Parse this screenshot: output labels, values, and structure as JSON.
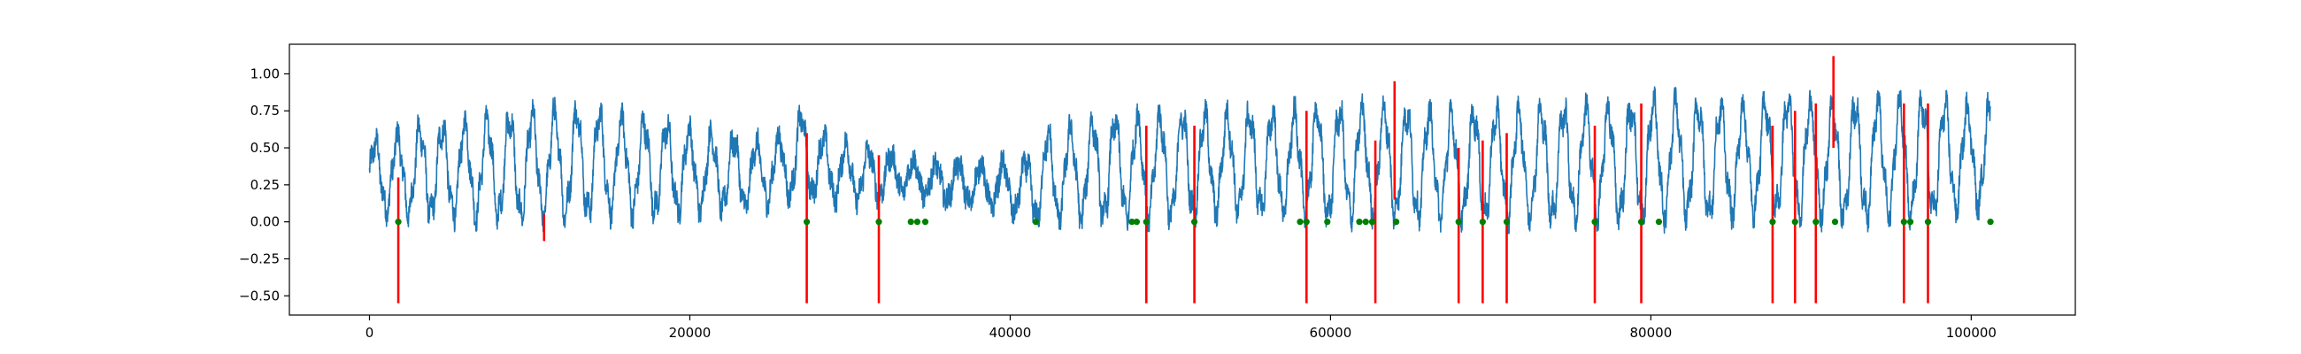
{
  "chart_data": {
    "type": "line",
    "title": "",
    "xlabel": "",
    "ylabel": "",
    "xlim": [
      -5000,
      106500
    ],
    "ylim": [
      -0.63,
      1.2
    ],
    "xticks": [
      0,
      20000,
      40000,
      60000,
      80000,
      100000
    ],
    "xtick_labels": [
      "0",
      "20000",
      "40000",
      "60000",
      "80000",
      "100000"
    ],
    "yticks": [
      -0.5,
      -0.25,
      0.0,
      0.25,
      0.5,
      0.75,
      1.0
    ],
    "ytick_labels": [
      "−0.50",
      "−0.25",
      "0.00",
      "0.25",
      "0.50",
      "0.75",
      "1.00"
    ],
    "grid": false,
    "legend": "none",
    "series": [
      {
        "kind": "line",
        "color": "#1f77b4",
        "x_range": [
          0,
          101200
        ],
        "envelope": [
          [
            0,
            0.05,
            0.55
          ],
          [
            1000,
            0.05,
            0.58
          ],
          [
            3000,
            0.02,
            0.65
          ],
          [
            10000,
            0.0,
            0.75
          ],
          [
            13000,
            0.02,
            0.78
          ],
          [
            20000,
            0.05,
            0.65
          ],
          [
            24000,
            0.08,
            0.55
          ],
          [
            26000,
            0.15,
            0.6
          ],
          [
            27000,
            0.18,
            0.75
          ],
          [
            28000,
            0.15,
            0.6
          ],
          [
            31000,
            0.12,
            0.5
          ],
          [
            33000,
            0.2,
            0.45
          ],
          [
            35000,
            0.15,
            0.4
          ],
          [
            38000,
            0.1,
            0.4
          ],
          [
            41000,
            0.02,
            0.42
          ],
          [
            42000,
            -0.02,
            0.6
          ],
          [
            45000,
            0.0,
            0.7
          ],
          [
            50000,
            0.0,
            0.75
          ],
          [
            55000,
            0.05,
            0.75
          ],
          [
            60000,
            0.0,
            0.78
          ],
          [
            63000,
            0.02,
            0.8
          ],
          [
            67000,
            0.0,
            0.75
          ],
          [
            72000,
            0.0,
            0.78
          ],
          [
            78000,
            0.0,
            0.8
          ],
          [
            80000,
            0.0,
            0.85
          ],
          [
            85000,
            0.02,
            0.8
          ],
          [
            88000,
            0.05,
            0.85
          ],
          [
            91000,
            0.0,
            0.82
          ],
          [
            96000,
            0.0,
            0.85
          ],
          [
            99000,
            0.05,
            0.8
          ],
          [
            101200,
            0.1,
            0.82
          ]
        ],
        "period": 1400
      },
      {
        "kind": "vlines",
        "color": "#ff0000",
        "lines": [
          [
            1800,
            -0.55,
            0.3
          ],
          [
            10900,
            -0.13,
            0.05
          ],
          [
            27300,
            -0.55,
            0.6
          ],
          [
            31800,
            -0.55,
            0.45
          ],
          [
            48500,
            -0.55,
            0.65
          ],
          [
            51500,
            -0.55,
            0.65
          ],
          [
            58500,
            -0.55,
            0.75
          ],
          [
            62800,
            -0.55,
            0.55
          ],
          [
            64000,
            0.15,
            0.95
          ],
          [
            68000,
            -0.55,
            0.5
          ],
          [
            69500,
            -0.55,
            0.55
          ],
          [
            71000,
            -0.55,
            0.6
          ],
          [
            76500,
            -0.55,
            0.65
          ],
          [
            79400,
            -0.55,
            0.8
          ],
          [
            87600,
            -0.55,
            0.65
          ],
          [
            89000,
            -0.55,
            0.75
          ],
          [
            90300,
            -0.55,
            0.8
          ],
          [
            91400,
            0.5,
            1.12
          ],
          [
            95800,
            -0.55,
            0.8
          ],
          [
            97300,
            -0.55,
            0.8
          ]
        ]
      },
      {
        "kind": "scatter",
        "color": "#008000",
        "markers": [
          [
            1800,
            0
          ],
          [
            27300,
            0
          ],
          [
            31800,
            0
          ],
          [
            33800,
            0
          ],
          [
            34200,
            0
          ],
          [
            34700,
            0
          ],
          [
            41600,
            0
          ],
          [
            47600,
            0
          ],
          [
            47900,
            0
          ],
          [
            48500,
            0
          ],
          [
            51500,
            0
          ],
          [
            58100,
            0
          ],
          [
            58500,
            0
          ],
          [
            59800,
            0
          ],
          [
            61800,
            0
          ],
          [
            62200,
            0
          ],
          [
            62600,
            0
          ],
          [
            64100,
            0
          ],
          [
            68000,
            0
          ],
          [
            69500,
            0
          ],
          [
            71000,
            0
          ],
          [
            76500,
            0
          ],
          [
            79400,
            0
          ],
          [
            80500,
            0
          ],
          [
            87600,
            0
          ],
          [
            89000,
            0
          ],
          [
            90300,
            0
          ],
          [
            91500,
            0
          ],
          [
            95800,
            0
          ],
          [
            96200,
            0
          ],
          [
            97300,
            0
          ],
          [
            101200,
            0
          ]
        ]
      }
    ]
  }
}
